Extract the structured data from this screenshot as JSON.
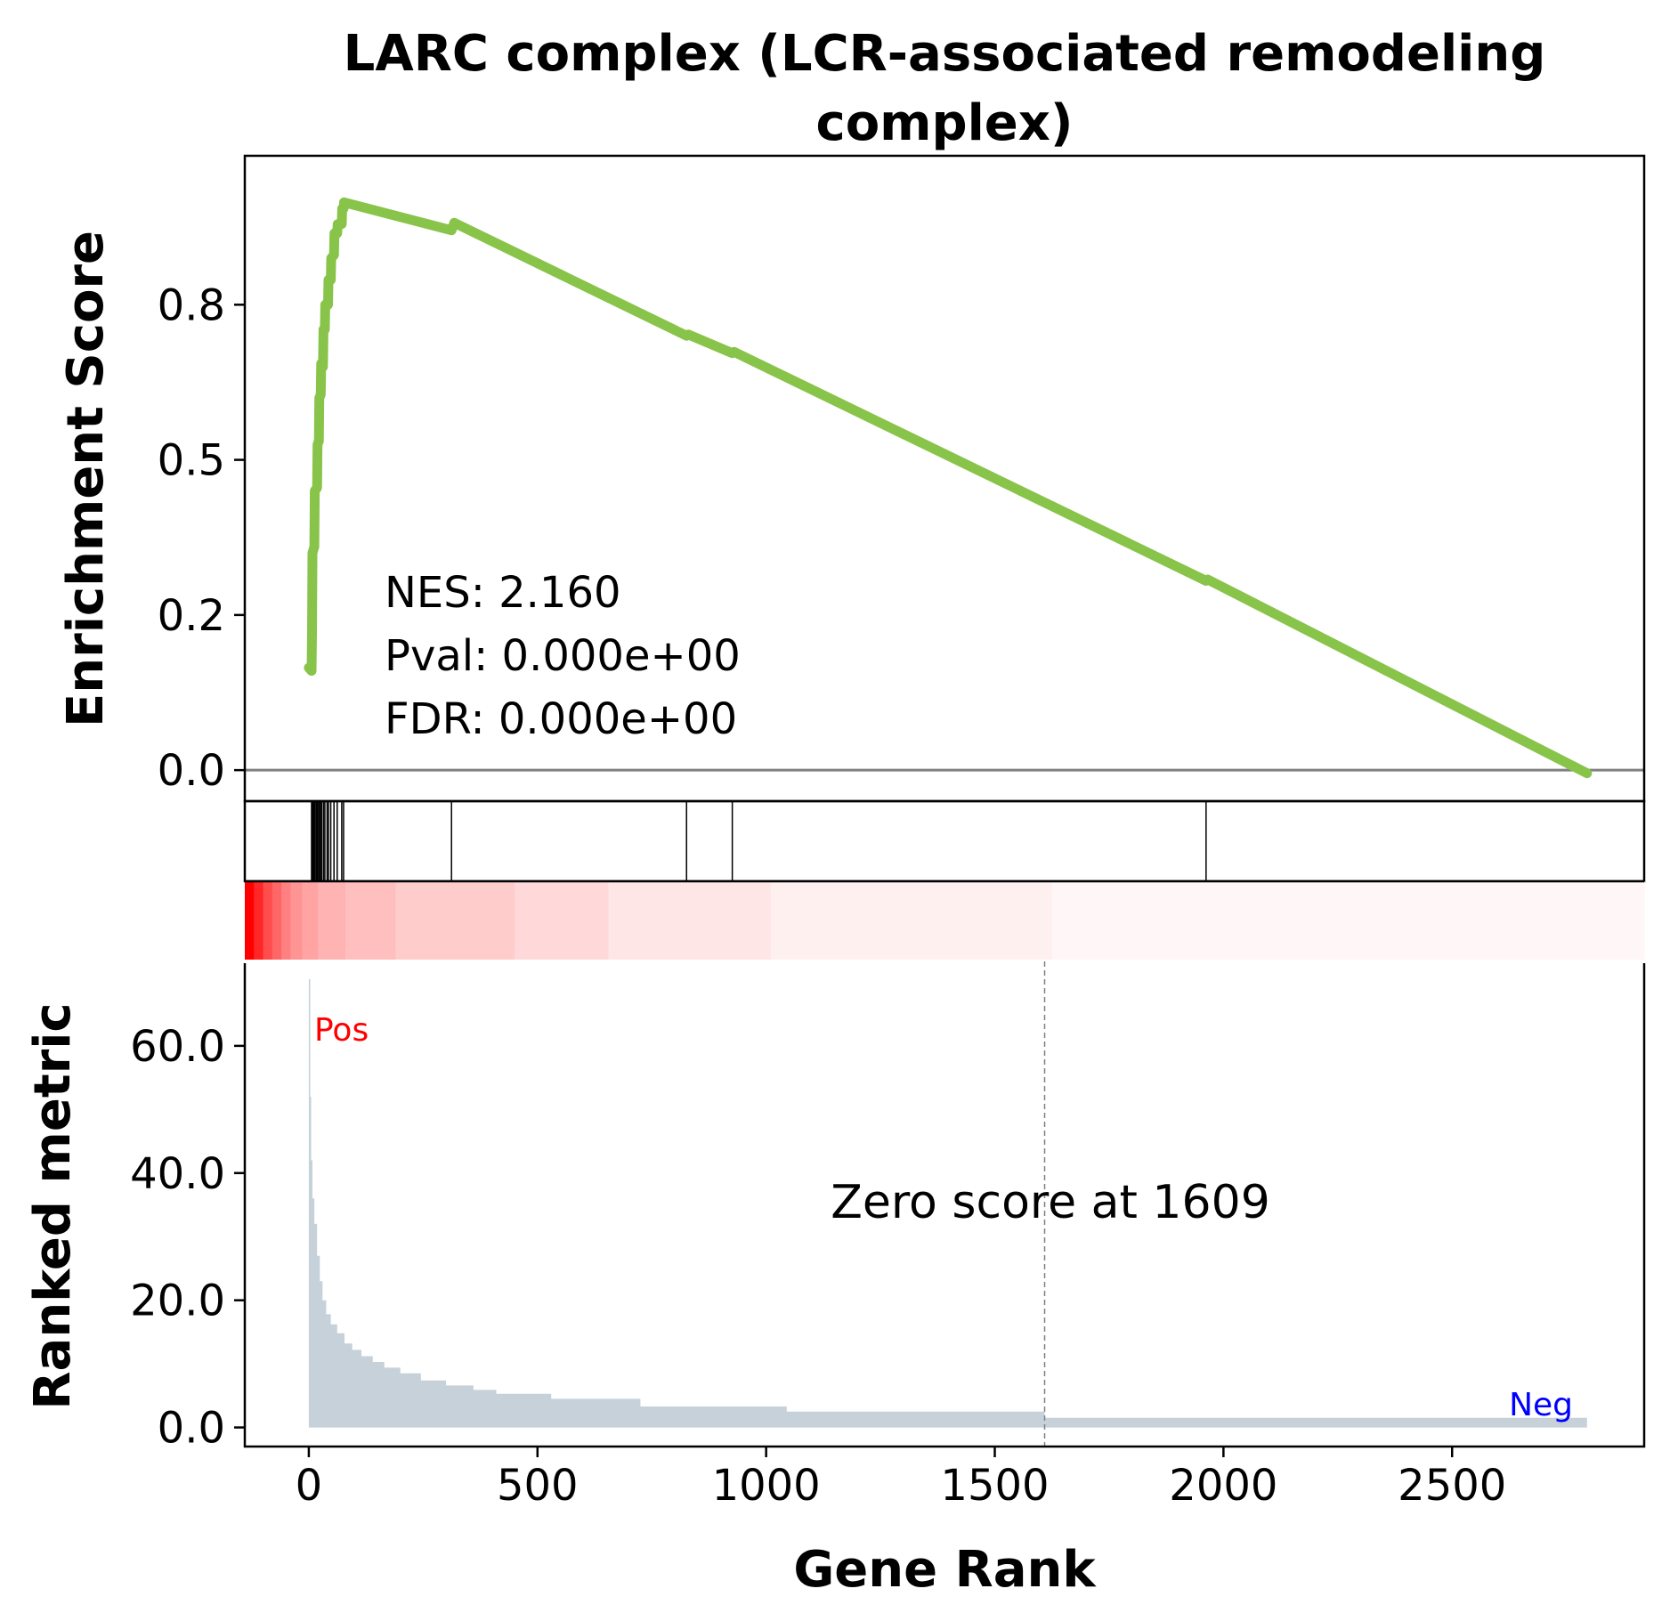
{
  "chart_data": {
    "type": "line",
    "title": "LARC complex (LCR-associated remodeling complex)",
    "title_lines": [
      "LARC complex (LCR-associated remodeling",
      "complex)"
    ],
    "xlabel": "Gene Rank",
    "xlim": [
      -140,
      2920
    ],
    "x_ticks": [
      0,
      500,
      1000,
      1500,
      2000,
      2500
    ],
    "x_tick_labels": [
      "0",
      "500",
      "1000",
      "1500",
      "2000",
      "2500"
    ],
    "enrichment": {
      "ylabel": "Enrichment Score",
      "ylim": [
        -0.05,
        0.99
      ],
      "y_ticks": [
        0.0,
        0.25,
        0.5,
        0.75
      ],
      "y_tick_labels": [
        "0.0",
        "0.2",
        "0.5",
        "0.8"
      ],
      "baseline": 0.0,
      "line_color": "#88c34a",
      "baseline_color": "#808080",
      "points": [
        [
          0,
          0.165
        ],
        [
          6,
          0.16
        ],
        [
          7,
          0.22
        ],
        [
          8,
          0.35
        ],
        [
          12,
          0.36
        ],
        [
          13,
          0.45
        ],
        [
          18,
          0.455
        ],
        [
          19,
          0.525
        ],
        [
          22,
          0.53
        ],
        [
          23,
          0.6
        ],
        [
          26,
          0.605
        ],
        [
          27,
          0.655
        ],
        [
          31,
          0.65
        ],
        [
          32,
          0.71
        ],
        [
          35,
          0.71
        ],
        [
          36,
          0.75
        ],
        [
          42,
          0.75
        ],
        [
          43,
          0.79
        ],
        [
          48,
          0.79
        ],
        [
          49,
          0.825
        ],
        [
          55,
          0.83
        ],
        [
          56,
          0.865
        ],
        [
          62,
          0.865
        ],
        [
          63,
          0.88
        ],
        [
          72,
          0.88
        ],
        [
          73,
          0.905
        ],
        [
          76,
          0.905
        ],
        [
          77,
          0.915
        ],
        [
          312,
          0.87
        ],
        [
          318,
          0.882
        ],
        [
          826,
          0.7
        ],
        [
          830,
          0.702
        ],
        [
          926,
          0.672
        ],
        [
          930,
          0.674
        ],
        [
          1962,
          0.305
        ],
        [
          1966,
          0.307
        ],
        [
          2795,
          -0.005
        ]
      ],
      "stats": [
        "NES: 2.160",
        "Pval: 0.000e+00",
        "FDR: 0.000e+00"
      ]
    },
    "hits": [
      6,
      8,
      10,
      12,
      14,
      17,
      19,
      22,
      25,
      28,
      32,
      35,
      40,
      43,
      48,
      55,
      62,
      72,
      76,
      312,
      826,
      926,
      1962
    ],
    "heatmap": {
      "colormap": "white-to-red",
      "segments": [
        {
          "start": -140,
          "end": -120,
          "intensity": 1.0
        },
        {
          "start": -120,
          "end": -100,
          "intensity": 0.85
        },
        {
          "start": -100,
          "end": -80,
          "intensity": 0.7
        },
        {
          "start": -80,
          "end": -60,
          "intensity": 0.6
        },
        {
          "start": -60,
          "end": -40,
          "intensity": 0.5
        },
        {
          "start": -40,
          "end": -15,
          "intensity": 0.42
        },
        {
          "start": -15,
          "end": 20,
          "intensity": 0.36
        },
        {
          "start": 20,
          "end": 80,
          "intensity": 0.3
        },
        {
          "start": 80,
          "end": 190,
          "intensity": 0.25
        },
        {
          "start": 190,
          "end": 450,
          "intensity": 0.2
        },
        {
          "start": 450,
          "end": 655,
          "intensity": 0.15
        },
        {
          "start": 655,
          "end": 1010,
          "intensity": 0.1
        },
        {
          "start": 1010,
          "end": 1625,
          "intensity": 0.06
        },
        {
          "start": 1625,
          "end": 2920,
          "intensity": 0.03
        }
      ]
    },
    "ranked_metric": {
      "ylabel": "Ranked metric",
      "ylim": [
        -3,
        73
      ],
      "y_ticks": [
        0,
        20,
        40,
        60
      ],
      "y_tick_labels": [
        "0.0",
        "20.0",
        "40.0",
        "60.0"
      ],
      "fill_color": "#c6d1da",
      "steps": [
        [
          0,
          70.5
        ],
        [
          3,
          52
        ],
        [
          5,
          42
        ],
        [
          8,
          36
        ],
        [
          12,
          32
        ],
        [
          18,
          27
        ],
        [
          24,
          23
        ],
        [
          30,
          20
        ],
        [
          38,
          17.8
        ],
        [
          48,
          16.2
        ],
        [
          62,
          14.8
        ],
        [
          78,
          13.2
        ],
        [
          95,
          12.2
        ],
        [
          115,
          11.2
        ],
        [
          140,
          10.3
        ],
        [
          165,
          9.4
        ],
        [
          200,
          8.5
        ],
        [
          245,
          7.4
        ],
        [
          300,
          6.6
        ],
        [
          360,
          5.9
        ],
        [
          410,
          5.3
        ],
        [
          530,
          4.5
        ],
        [
          725,
          3.3
        ],
        [
          1045,
          2.5
        ],
        [
          1609,
          1.5
        ],
        [
          2795,
          0
        ]
      ],
      "zero_cross_at": 1609,
      "zero_cross_label": "Zero score at 1609",
      "pos_label": "Pos",
      "neg_label": "Neg",
      "pos_color": "#ff0000",
      "neg_color": "#0000ff"
    }
  }
}
